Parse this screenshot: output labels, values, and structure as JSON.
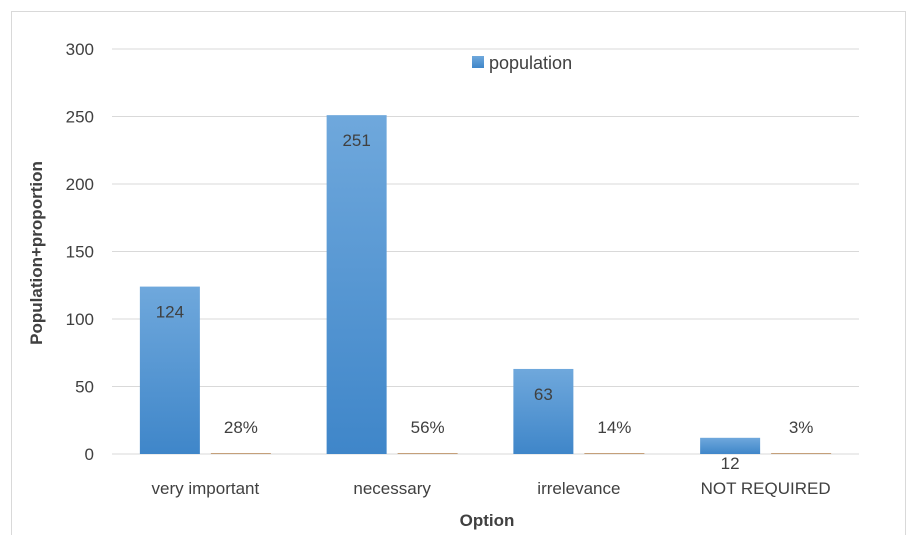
{
  "chart_data": {
    "type": "bar",
    "categories": [
      "very important",
      "necessary",
      "irrelevance",
      "NOT REQUIRED"
    ],
    "series": [
      {
        "name": "population",
        "values": [
          124,
          251,
          63,
          12
        ],
        "color": "#5b9bd5"
      },
      {
        "name": "",
        "values": [
          0.28,
          0.56,
          0.14,
          0.03
        ],
        "labels": [
          "28%",
          "56%",
          "14%",
          "3%"
        ],
        "color": "#c5a07a"
      }
    ],
    "xlabel": "Option",
    "ylabel": "Population+proportion",
    "ylim": [
      0,
      300
    ],
    "yticks": [
      0,
      50,
      100,
      150,
      200,
      250,
      300
    ],
    "grid": true,
    "legend": "top-center"
  }
}
